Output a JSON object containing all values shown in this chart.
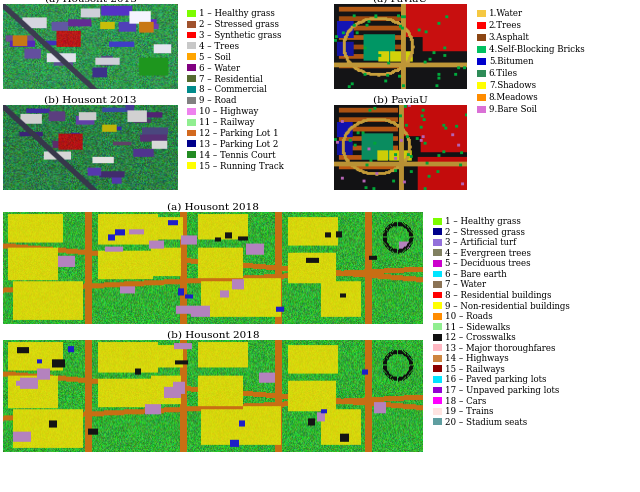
{
  "housont2013_legend": [
    {
      "color": "#7cfc00",
      "label": "1 – Healthy grass"
    },
    {
      "color": "#a0522d",
      "label": "2 – Stressed grass"
    },
    {
      "color": "#ff0000",
      "label": "3 – Synthetic grass"
    },
    {
      "color": "#c8c8c8",
      "label": "4 – Trees"
    },
    {
      "color": "#ffa500",
      "label": "5 – Soil"
    },
    {
      "color": "#800080",
      "label": "6 – Water"
    },
    {
      "color": "#556b2f",
      "label": "7 – Residential"
    },
    {
      "color": "#008b8b",
      "label": "8 – Commercial"
    },
    {
      "color": "#808080",
      "label": "9 – Road"
    },
    {
      "color": "#ee82ee",
      "label": "10 – Highway"
    },
    {
      "color": "#90ee90",
      "label": "11 – Railway"
    },
    {
      "color": "#d2691e",
      "label": "12 – Parking Lot 1"
    },
    {
      "color": "#00008b",
      "label": "13 – Parking Lot 2"
    },
    {
      "color": "#228b22",
      "label": "14 – Tennis Court"
    },
    {
      "color": "#ffff00",
      "label": "15 – Running Track"
    }
  ],
  "paviau_legend": [
    {
      "color": "#f5c842",
      "label": "1.Water"
    },
    {
      "color": "#ff0000",
      "label": "2.Trees"
    },
    {
      "color": "#8b4513",
      "label": "3.Asphalt"
    },
    {
      "color": "#00c060",
      "label": "4.Self-Blocking Bricks"
    },
    {
      "color": "#0000cd",
      "label": "5.Bitumen"
    },
    {
      "color": "#2e8b57",
      "label": "6.Tiles"
    },
    {
      "color": "#ffff00",
      "label": "7.Shadows"
    },
    {
      "color": "#ff8c00",
      "label": "8.Meadows"
    },
    {
      "color": "#da70d6",
      "label": "9.Bare Soil"
    }
  ],
  "housont2018_legend": [
    {
      "color": "#7cfc00",
      "label": "1 – Healthy grass"
    },
    {
      "color": "#00008b",
      "label": "2 – Stressed grass"
    },
    {
      "color": "#9370db",
      "label": "3 – Artificial turf"
    },
    {
      "color": "#808060",
      "label": "4 – Evergreen trees"
    },
    {
      "color": "#cc00cc",
      "label": "5 – Deciduous trees"
    },
    {
      "color": "#00e5ff",
      "label": "6 – Bare earth"
    },
    {
      "color": "#8b7355",
      "label": "7 – Water"
    },
    {
      "color": "#ff0000",
      "label": "8 – Residential buildings"
    },
    {
      "color": "#ffff00",
      "label": "9 – Non-residential buildings"
    },
    {
      "color": "#ff8c00",
      "label": "10 – Roads"
    },
    {
      "color": "#90ee90",
      "label": "11 – Sidewalks"
    },
    {
      "color": "#111111",
      "label": "12 – Crosswalks"
    },
    {
      "color": "#ffb6c1",
      "label": "13 – Major thoroughfares"
    },
    {
      "color": "#cd853f",
      "label": "14 – Highways"
    },
    {
      "color": "#8b0000",
      "label": "15 – Railways"
    },
    {
      "color": "#00e5ff",
      "label": "16 – Paved parking lots"
    },
    {
      "color": "#9400d3",
      "label": "17 – Unpaved parking lots"
    },
    {
      "color": "#ff00ff",
      "label": "18 – Cars"
    },
    {
      "color": "#ffe4e1",
      "label": "19 – Trains"
    },
    {
      "color": "#5f9ea0",
      "label": "20 – Stadium seats"
    }
  ],
  "caption_fontsize": 7.5,
  "legend_fontsize": 6.2,
  "bg_color": "#ffffff"
}
